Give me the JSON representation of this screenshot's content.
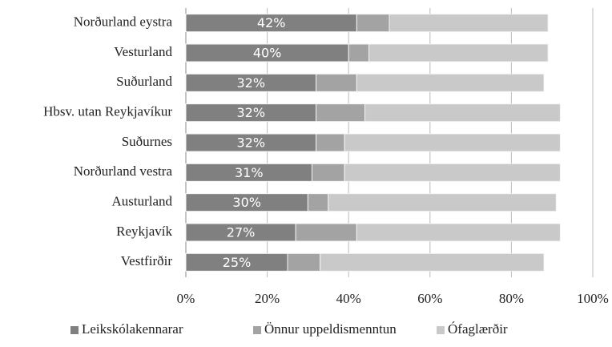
{
  "chart_data": {
    "type": "stacked_barh",
    "categories": [
      "Norðurland eystra",
      "Vesturland",
      "Suðurland",
      "Hbsv. utan Reykjavíkur",
      "Suðurnes",
      "Norðurland vestra",
      "Austurland",
      "Reykjavík",
      "Vestfirðir"
    ],
    "series": [
      {
        "name": "Leikskólakennarar",
        "color": "#808080",
        "values": [
          42,
          40,
          32,
          32,
          32,
          31,
          30,
          27,
          25
        ],
        "value_labels": [
          "42%",
          "40%",
          "32%",
          "32%",
          "32%",
          "31%",
          "30%",
          "27%",
          "25%"
        ]
      },
      {
        "name": "Önnur uppeldismenntun",
        "color": "#a3a3a3",
        "values": [
          8,
          5,
          10,
          12,
          7,
          8,
          5,
          15,
          8
        ]
      },
      {
        "name": "Ófaglærðir",
        "color": "#c9c9c9",
        "values": [
          39,
          44,
          46,
          48,
          53,
          53,
          56,
          50,
          55
        ]
      }
    ],
    "xlim": [
      0,
      100
    ],
    "xticks": [
      {
        "value": 0,
        "label": "0%"
      },
      {
        "value": 20,
        "label": "20%"
      },
      {
        "value": 40,
        "label": "40%"
      },
      {
        "value": 60,
        "label": "60%"
      },
      {
        "value": 80,
        "label": "80%"
      },
      {
        "value": 100,
        "label": "100%"
      }
    ],
    "grid": true,
    "legend": "bottom"
  }
}
